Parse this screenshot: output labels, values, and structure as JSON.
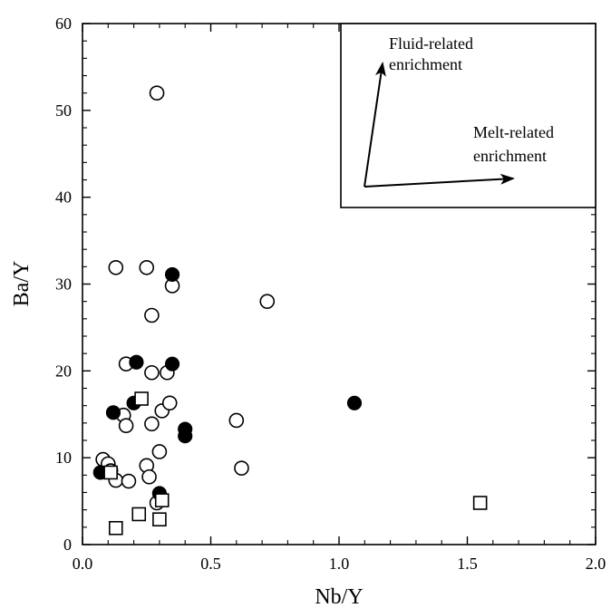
{
  "chart_data": {
    "type": "scatter",
    "title": "",
    "xlabel": "Nb/Y",
    "ylabel": "Ba/Y",
    "xlim": [
      0,
      2.0
    ],
    "ylim": [
      0,
      60
    ],
    "x_ticks": [
      "0.0",
      "0.5",
      "1.0",
      "1.5",
      "2.0"
    ],
    "y_ticks": [
      "0",
      "10",
      "20",
      "30",
      "40",
      "50",
      "60"
    ],
    "grid": false,
    "inset": {
      "fluid_label_line1": "Fluid-related",
      "fluid_label_line2": "enrichment",
      "melt_label_line1": "Melt-related",
      "melt_label_line2": "enrichment"
    },
    "series": [
      {
        "marker": "open-circle",
        "points": [
          [
            0.29,
            52.0
          ],
          [
            0.13,
            31.9
          ],
          [
            0.25,
            31.9
          ],
          [
            0.35,
            29.8
          ],
          [
            0.27,
            26.4
          ],
          [
            0.72,
            28.0
          ],
          [
            0.17,
            20.8
          ],
          [
            0.27,
            19.8
          ],
          [
            0.33,
            19.8
          ],
          [
            0.16,
            14.9
          ],
          [
            0.17,
            13.7
          ],
          [
            0.27,
            13.9
          ],
          [
            0.31,
            15.4
          ],
          [
            0.34,
            16.3
          ],
          [
            0.6,
            14.3
          ],
          [
            0.08,
            9.8
          ],
          [
            0.1,
            9.3
          ],
          [
            0.11,
            8.5
          ],
          [
            0.13,
            7.4
          ],
          [
            0.18,
            7.3
          ],
          [
            0.25,
            9.1
          ],
          [
            0.3,
            10.7
          ],
          [
            0.26,
            7.8
          ],
          [
            0.62,
            8.8
          ],
          [
            0.29,
            4.8
          ]
        ]
      },
      {
        "marker": "filled-circle",
        "points": [
          [
            0.35,
            31.1
          ],
          [
            0.21,
            21.0
          ],
          [
            0.35,
            20.8
          ],
          [
            0.12,
            15.2
          ],
          [
            0.2,
            16.3
          ],
          [
            0.4,
            13.3
          ],
          [
            0.4,
            12.5
          ],
          [
            1.06,
            16.3
          ],
          [
            0.07,
            8.3
          ],
          [
            0.3,
            5.9
          ]
        ]
      },
      {
        "marker": "open-square",
        "points": [
          [
            0.23,
            16.8
          ],
          [
            0.11,
            8.3
          ],
          [
            0.31,
            5.1
          ],
          [
            0.22,
            3.5
          ],
          [
            0.3,
            2.9
          ],
          [
            0.13,
            1.9
          ],
          [
            1.55,
            4.8
          ]
        ]
      }
    ]
  }
}
